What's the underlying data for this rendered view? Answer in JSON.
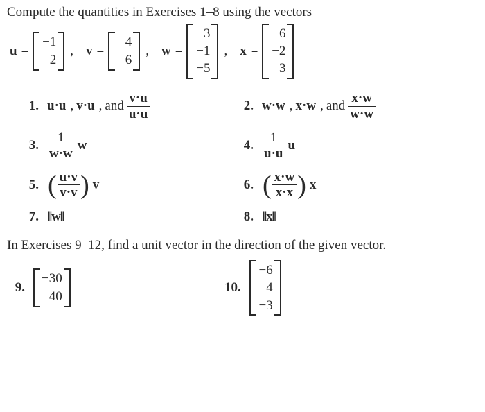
{
  "intro": "Compute the quantities in Exercises 1–8 using the vectors",
  "colors": {
    "text": "#2a2a2a",
    "background": "#ffffff",
    "rule": "#2a2a2a"
  },
  "font": {
    "family": "Times New Roman",
    "base_size_pt": 15
  },
  "vectors": {
    "u": {
      "name": "u",
      "values": [
        "−1",
        "2"
      ]
    },
    "v": {
      "name": "v",
      "values": [
        "4",
        "6"
      ]
    },
    "w": {
      "name": "w",
      "values": [
        "3",
        "−1",
        "−5"
      ]
    },
    "x": {
      "name": "x",
      "values": [
        "6",
        "−2",
        "3"
      ]
    }
  },
  "eq": "=",
  "comma": ",",
  "and": "and",
  "dot": "·",
  "exercises": {
    "n1": "1.",
    "n2": "2.",
    "n3": "3.",
    "n4": "4.",
    "n5": "5.",
    "n6": "6.",
    "n7": "7.",
    "n8": "8.",
    "e1_a": "u·u",
    "e1_b": "v·u",
    "e1_frac_top": "v·u",
    "e1_frac_bot": "u·u",
    "e2_a": "w·w",
    "e2_b": "x·w",
    "e2_frac_top": "x·w",
    "e2_frac_bot": "w·w",
    "e3_top": "1",
    "e3_bot": "w·w",
    "e3_right": "w",
    "e4_top": "1",
    "e4_bot": "u·u",
    "e4_right": "u",
    "e5_top": "u·v",
    "e5_bot": "v·v",
    "e5_right": "v",
    "e6_top": "x·w",
    "e6_bot": "x·x",
    "e6_right": "x",
    "e7_norm": "‖w‖",
    "e8_norm": "‖x‖"
  },
  "section2": "In Exercises 9–12, find a unit vector in the direction of the given vector.",
  "ex9": {
    "num": "9.",
    "values": [
      "−30",
      "40"
    ]
  },
  "ex10": {
    "num": "10.",
    "values": [
      "−6",
      "4",
      "−3"
    ]
  }
}
